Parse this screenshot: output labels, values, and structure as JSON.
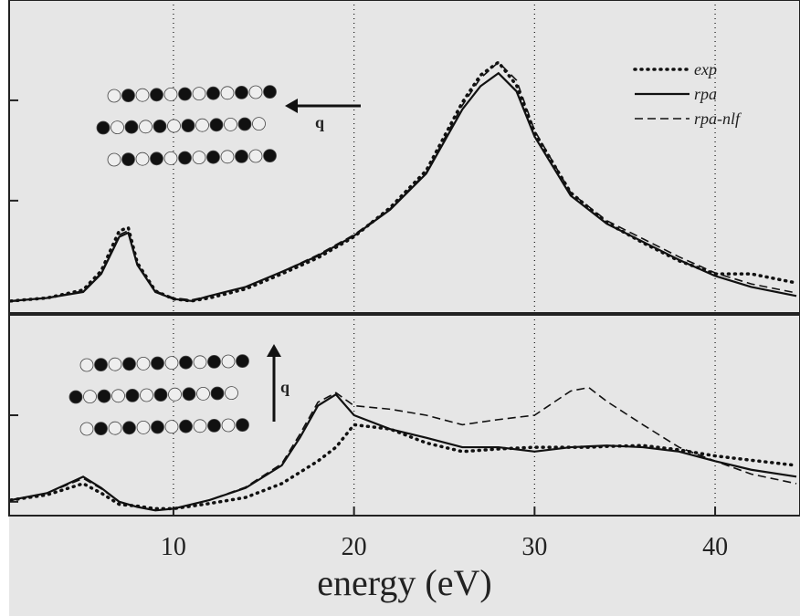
{
  "chart_data": [
    {
      "type": "line",
      "x": [
        1,
        3,
        5,
        6,
        7,
        7.5,
        8,
        9,
        10,
        11,
        12,
        14,
        16,
        18,
        20,
        22,
        24,
        26,
        27,
        28,
        29,
        30,
        32,
        34,
        36,
        38,
        40,
        42,
        44.5
      ],
      "series": [
        {
          "name": "exp",
          "style": "dotted",
          "color": "#111111",
          "values": [
            0,
            0.03,
            0.11,
            0.3,
            0.7,
            0.73,
            0.38,
            0.1,
            0.02,
            0,
            0.03,
            0.12,
            0.27,
            0.43,
            0.64,
            0.93,
            1.3,
            1.98,
            2.25,
            2.38,
            2.15,
            1.68,
            1.08,
            0.78,
            0.58,
            0.4,
            0.27,
            0.27,
            0.18
          ]
        },
        {
          "name": "rpa",
          "style": "solid",
          "color": "#111111",
          "values": [
            0,
            0.03,
            0.09,
            0.27,
            0.64,
            0.68,
            0.36,
            0.09,
            0.02,
            0,
            0.05,
            0.14,
            0.29,
            0.45,
            0.65,
            0.91,
            1.27,
            1.91,
            2.14,
            2.27,
            2.09,
            1.64,
            1.05,
            0.77,
            0.59,
            0.41,
            0.25,
            0.14,
            0.05
          ]
        },
        {
          "name": "rpa-nlf",
          "style": "dashed",
          "color": "#111111",
          "values": [
            0,
            0.03,
            0.1,
            0.28,
            0.66,
            0.7,
            0.37,
            0.1,
            0.03,
            0.01,
            0.05,
            0.14,
            0.29,
            0.46,
            0.66,
            0.92,
            1.28,
            1.95,
            2.22,
            2.38,
            2.2,
            1.7,
            1.08,
            0.8,
            0.62,
            0.44,
            0.28,
            0.17,
            0.08
          ]
        }
      ],
      "xlim": [
        0.9,
        44.7
      ],
      "ylim": [
        -0.12,
        3.0
      ],
      "yticks": [
        0,
        1,
        2
      ],
      "annotation": "q"
    },
    {
      "type": "line",
      "x": [
        1,
        3,
        5,
        6,
        7,
        8,
        9,
        10,
        12,
        14,
        16,
        17,
        18,
        19,
        20,
        22,
        24,
        26,
        28,
        30,
        32,
        33,
        34,
        36,
        38,
        40,
        42,
        44.5
      ],
      "series": [
        {
          "style": "dotted",
          "color": "#111111",
          "values": [
            0.02,
            0.08,
            0.21,
            0.1,
            -0.03,
            -0.05,
            -0.08,
            -0.08,
            -0.02,
            0.05,
            0.21,
            0.34,
            0.47,
            0.63,
            0.89,
            0.84,
            0.68,
            0.58,
            0.61,
            0.63,
            0.63,
            0.63,
            0.64,
            0.65,
            0.6,
            0.53,
            0.48,
            0.42
          ]
        },
        {
          "style": "solid",
          "color": "#111111",
          "values": [
            0.02,
            0.1,
            0.29,
            0.16,
            0,
            -0.06,
            -0.1,
            -0.08,
            0.02,
            0.16,
            0.42,
            0.74,
            1.11,
            1.24,
            1,
            0.84,
            0.74,
            0.63,
            0.63,
            0.58,
            0.63,
            0.64,
            0.65,
            0.63,
            0.58,
            0.47,
            0.37,
            0.29
          ]
        },
        {
          "style": "dashed",
          "color": "#111111",
          "values": [
            0.02,
            0.1,
            0.27,
            0.15,
            0,
            -0.06,
            -0.1,
            -0.08,
            0.02,
            0.17,
            0.44,
            0.78,
            1.15,
            1.26,
            1.11,
            1.07,
            1,
            0.89,
            0.95,
            1,
            1.28,
            1.32,
            1.16,
            0.89,
            0.63,
            0.47,
            0.32,
            0.21
          ]
        }
      ],
      "xlim": [
        0.9,
        44.7
      ],
      "ylim": [
        -0.16,
        2.16
      ],
      "yticks": [
        0,
        1
      ],
      "xticks": [
        10,
        20,
        30,
        40
      ],
      "xlabel": "energy  (eV)",
      "annotation": "q"
    }
  ]
}
